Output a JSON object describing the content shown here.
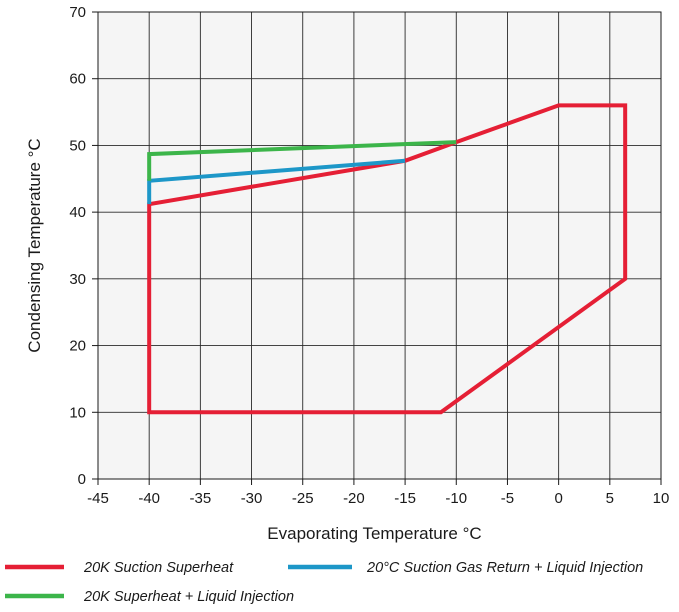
{
  "chart_data": {
    "type": "line",
    "xlabel": "Evaporating Temperature °C",
    "ylabel": "Condensing Temperature °C",
    "xlim": [
      -45,
      10
    ],
    "ylim": [
      0,
      70
    ],
    "x_ticks": [
      -45,
      -40,
      -35,
      -30,
      -25,
      -20,
      -15,
      -10,
      -5,
      0,
      5,
      10
    ],
    "y_ticks": [
      0,
      10,
      20,
      30,
      40,
      50,
      60,
      70
    ],
    "grid": true,
    "plot_background": "#f5f5f5",
    "legend_position": "bottom",
    "series": [
      {
        "name": "20K Suction Superheat",
        "color": "#e51f35",
        "closed": true,
        "points": [
          [
            -40,
            10
          ],
          [
            -11.5,
            10
          ],
          [
            6.5,
            30
          ],
          [
            6.5,
            56
          ],
          [
            0,
            56
          ],
          [
            -10,
            50.5
          ],
          [
            -15,
            47.7
          ],
          [
            -40,
            41.2
          ],
          [
            -40,
            10
          ]
        ]
      },
      {
        "name": "20°C Suction Gas Return + Liquid Injection",
        "color": "#1d97c8",
        "closed": false,
        "points": [
          [
            -40,
            41.2
          ],
          [
            -40,
            44.7
          ],
          [
            -15,
            47.7
          ]
        ]
      },
      {
        "name": "20K Superheat + Liquid Injection",
        "color": "#3cb54a",
        "closed": false,
        "points": [
          [
            -40,
            44.7
          ],
          [
            -40,
            48.7
          ],
          [
            -10,
            50.5
          ]
        ]
      }
    ]
  }
}
